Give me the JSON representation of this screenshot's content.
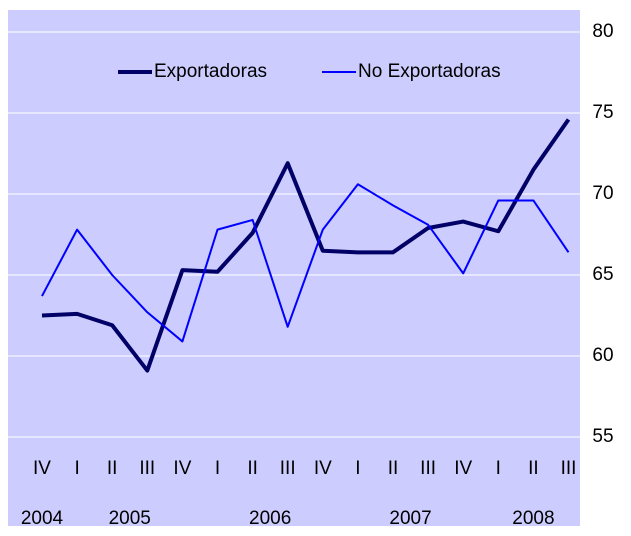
{
  "chart_data": {
    "type": "line",
    "categories": [
      "IV",
      "I",
      "II",
      "III",
      "IV",
      "I",
      "II",
      "III",
      "IV",
      "I",
      "II",
      "III",
      "IV",
      "I",
      "II",
      "III"
    ],
    "years": [
      "2004",
      "2005",
      "2006",
      "2007",
      "2008"
    ],
    "series": [
      {
        "name": "Exportadoras",
        "color": "#000066",
        "width": 4,
        "values": [
          62.5,
          62.6,
          61.9,
          59.1,
          65.3,
          65.2,
          67.6,
          71.9,
          66.5,
          66.4,
          66.4,
          67.9,
          68.3,
          67.7,
          71.5,
          74.6
        ]
      },
      {
        "name": "No Exportadoras",
        "color": "#0000ff",
        "width": 2,
        "values": [
          63.7,
          67.8,
          65.0,
          62.7,
          60.9,
          67.8,
          68.4,
          61.8,
          67.8,
          70.6,
          69.3,
          68.1,
          65.1,
          69.6,
          69.6,
          66.4
        ]
      }
    ],
    "ylim": [
      55,
      80
    ],
    "yticks": [
      55,
      60,
      65,
      70,
      75,
      80
    ],
    "grid": true,
    "legend": "top"
  }
}
